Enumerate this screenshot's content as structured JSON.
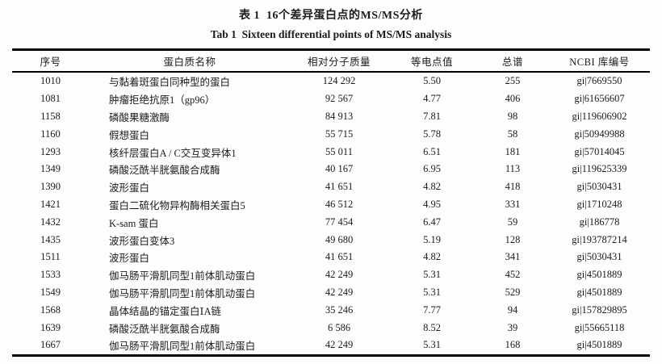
{
  "table": {
    "title_zh": "表 1  16个差异蛋白点的MS/MS分析",
    "title_en": "Tab 1  Sixteen differential points of MS/MS analysis",
    "columns": [
      "序号",
      "蛋白质名称",
      "相对分子质量",
      "等电点值",
      "总谱",
      "NCBI 库编号"
    ],
    "rows": [
      [
        "1010",
        "与黏着斑蛋白同种型的蛋白",
        "124 292",
        "5.50",
        "255",
        "gi|7669550"
      ],
      [
        "1081",
        "肿瘤拒绝抗原1（gp96）",
        "92 567",
        "4.77",
        "406",
        "gi|61656607"
      ],
      [
        "1158",
        "磷酸果糖激酶",
        "84 913",
        "7.81",
        "98",
        "gi|119606902"
      ],
      [
        "1160",
        "假想蛋白",
        "55 715",
        "5.78",
        "58",
        "gi|50949988"
      ],
      [
        "1293",
        "核纤层蛋白A / C交互变异体1",
        "55 011",
        "6.51",
        "181",
        "gi|57014045"
      ],
      [
        "1349",
        "磷酸泛酰半胱氨酸合成酶",
        "40 167",
        "6.95",
        "113",
        "gi|119625339"
      ],
      [
        "1390",
        "波形蛋白",
        "41 651",
        "4.82",
        "418",
        "gi|5030431"
      ],
      [
        "1421",
        "蛋白二硫化物异构酶相关蛋白5",
        "46 512",
        "4.95",
        "331",
        "gi|1710248"
      ],
      [
        "1432",
        "K-sam 蛋白",
        "77 454",
        "6.47",
        "59",
        "gi|186778"
      ],
      [
        "1435",
        "波形蛋白变体3",
        "49 680",
        "5.19",
        "128",
        "gi|193787214"
      ],
      [
        "1511",
        "波形蛋白",
        "41 651",
        "4.82",
        "341",
        "gi|5030431"
      ],
      [
        "1533",
        "伽马肠平滑肌同型1前体肌动蛋白",
        "42 249",
        "5.31",
        "452",
        "gi|4501889"
      ],
      [
        "1549",
        "伽马肠平滑肌同型1前体肌动蛋白",
        "42 249",
        "5.31",
        "529",
        "gi|4501889"
      ],
      [
        "1568",
        "晶体结晶的锚定蛋白ⅠA链",
        "35 246",
        "7.77",
        "94",
        "gi|157829895"
      ],
      [
        "1639",
        "磷酸泛酰半胱氨酸合成酶",
        "6 586",
        "8.52",
        "39",
        "gi|55665118"
      ],
      [
        "1667",
        "伽马肠平滑肌同型1前体肌动蛋白",
        "42 249",
        "5.31",
        "168",
        "gi|4501889"
      ]
    ]
  }
}
